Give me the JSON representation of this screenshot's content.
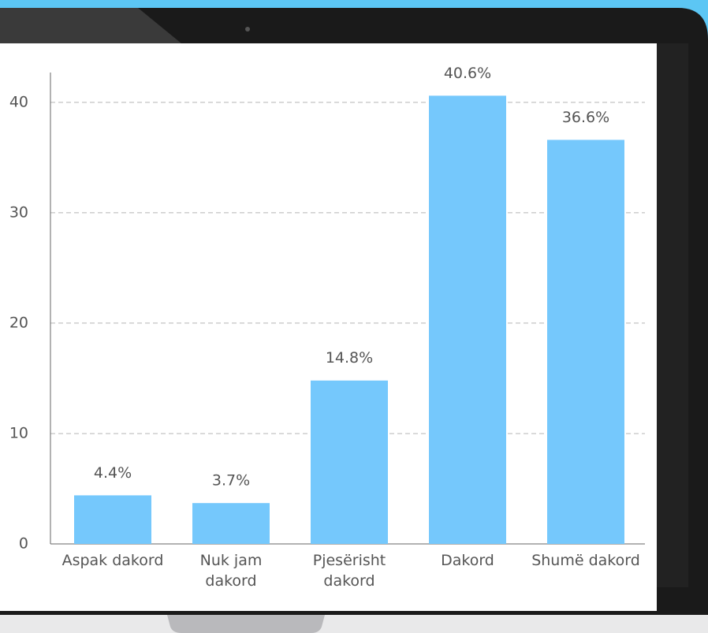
{
  "chart_data": {
    "type": "bar",
    "categories": [
      "Aspak dakord",
      "Nuk jam dakord",
      "Pjesërisht dakord",
      "Dakord",
      "Shumë dakord"
    ],
    "values": [
      4.4,
      3.7,
      14.8,
      40.6,
      36.6
    ],
    "value_labels": [
      "4.4%",
      "3.7%",
      "14.8%",
      "40.6%",
      "36.6%"
    ],
    "color": "#75c8fc",
    "ylim": [
      0,
      42.7
    ],
    "yticks": [
      0,
      10,
      20,
      30,
      40
    ],
    "grid": true
  }
}
